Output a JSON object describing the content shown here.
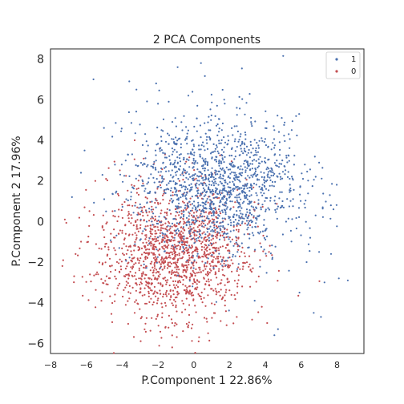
{
  "chart_data": {
    "type": "scatter",
    "title": "2 PCA Components",
    "xlabel": "P.Component 1   22.86%",
    "ylabel": "P.Component 2   17.96%",
    "xlim": [
      -8,
      9.5
    ],
    "ylim": [
      -6.5,
      8.5
    ],
    "xticks": [
      -8,
      -6,
      -4,
      -2,
      0,
      2,
      4,
      6,
      8
    ],
    "yticks": [
      -6,
      -4,
      -2,
      0,
      2,
      4,
      6,
      8
    ],
    "grid": false,
    "legend": {
      "placement": "top-right",
      "entries": [
        "1",
        "0"
      ]
    },
    "series": [
      {
        "name": "1",
        "color": "#4c72b0",
        "count": 1500,
        "center": [
          1.2,
          1.7
        ],
        "spread": [
          2.3,
          1.7
        ],
        "points": [
          [
            -5.6,
            7.0
          ],
          [
            -3.6,
            6.9
          ],
          [
            -3.2,
            6.5
          ],
          [
            -2.1,
            6.8
          ],
          [
            0.4,
            7.8
          ],
          [
            -0.9,
            7.6
          ],
          [
            -2.0,
            5.8
          ],
          [
            -1.4,
            5.9
          ],
          [
            0.2,
            5.7
          ],
          [
            1.3,
            5.7
          ],
          [
            2.4,
            4.7
          ],
          [
            3.2,
            4.9
          ],
          [
            4.0,
            4.6
          ],
          [
            4.5,
            4.5
          ],
          [
            5.3,
            4.3
          ],
          [
            5.6,
            2.8
          ],
          [
            6.1,
            2.1
          ],
          [
            7.0,
            2.9
          ],
          [
            7.6,
            1.3
          ],
          [
            7.2,
            0.7
          ],
          [
            6.8,
            0.3
          ],
          [
            6.5,
            -0.8
          ],
          [
            7.8,
            0.6
          ],
          [
            7.0,
            -1.5
          ],
          [
            6.3,
            -2.0
          ],
          [
            5.9,
            -3.5
          ],
          [
            7.3,
            -3.0
          ],
          [
            8.1,
            -2.8
          ],
          [
            8.6,
            -2.9
          ],
          [
            7.1,
            -4.7
          ],
          [
            6.7,
            -4.5
          ],
          [
            4.7,
            -5.3
          ],
          [
            4.5,
            -5.6
          ],
          [
            3.4,
            -3.9
          ],
          [
            -0.3,
            6.2
          ],
          [
            1.7,
            6.0
          ],
          [
            2.4,
            5.6
          ],
          [
            -1.8,
            4.5
          ],
          [
            -3.8,
            3.0
          ],
          [
            -4.4,
            2.8
          ],
          [
            -5.1,
            2.3
          ],
          [
            -6.1,
            3.5
          ],
          [
            -6.3,
            2.4
          ],
          [
            -6.8,
            1.2
          ],
          [
            -5.0,
            1.1
          ],
          [
            -4.9,
            0.5
          ],
          [
            0.0,
            3.0
          ],
          [
            1.0,
            2.2
          ]
        ]
      },
      {
        "name": "0",
        "color": "#c44e52",
        "count": 1500,
        "center": [
          -1.1,
          -1.6
        ],
        "spread": [
          2.0,
          1.6
        ],
        "points": [
          [
            -7.2,
            0.1
          ],
          [
            -6.6,
            -1.6
          ],
          [
            -5.9,
            -1.0
          ],
          [
            -6.1,
            0.7
          ],
          [
            -5.5,
            2.0
          ],
          [
            -4.9,
            2.1
          ],
          [
            -5.4,
            -2.5
          ],
          [
            -4.8,
            -3.1
          ],
          [
            -4.4,
            -3.6
          ],
          [
            -3.3,
            -4.5
          ],
          [
            -2.9,
            -4.7
          ],
          [
            -2.1,
            -4.8
          ],
          [
            -1.2,
            -5.0
          ],
          [
            -0.6,
            -5.4
          ],
          [
            0.3,
            -5.7
          ],
          [
            0.8,
            -5.5
          ],
          [
            1.5,
            -4.9
          ],
          [
            2.4,
            -4.7
          ],
          [
            3.8,
            -4.2
          ],
          [
            4.1,
            -5.0
          ],
          [
            2.7,
            -3.2
          ],
          [
            3.3,
            -2.3
          ],
          [
            4.2,
            -1.5
          ],
          [
            2.5,
            -0.5
          ],
          [
            1.4,
            0.6
          ],
          [
            0.6,
            1.5
          ],
          [
            -0.8,
            2.0
          ],
          [
            -1.9,
            3.6
          ],
          [
            -3.3,
            4.0
          ],
          [
            -2.8,
            3.1
          ],
          [
            -3.9,
            -1.1
          ],
          [
            -2.5,
            -1.6
          ],
          [
            -1.6,
            -2.0
          ],
          [
            -0.6,
            -1.0
          ],
          [
            0.4,
            -2.5
          ],
          [
            1.1,
            -3.4
          ],
          [
            -0.4,
            -3.8
          ],
          [
            -1.5,
            -3.0
          ],
          [
            -2.4,
            -0.2
          ],
          [
            -3.6,
            0.8
          ],
          [
            -4.2,
            -0.6
          ],
          [
            -5.1,
            -0.3
          ]
        ]
      }
    ]
  }
}
